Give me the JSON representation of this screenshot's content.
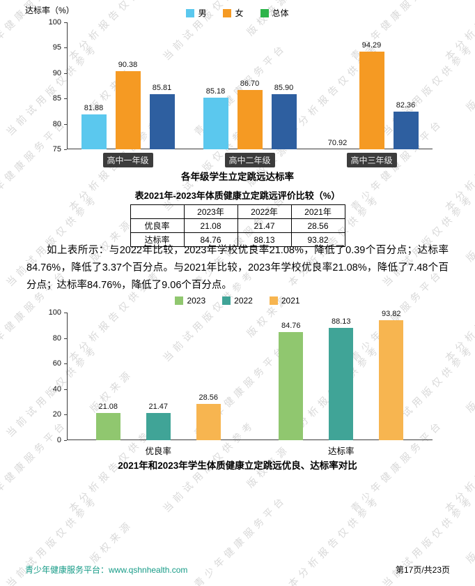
{
  "watermark": {
    "phrases": [
      "青少年健康服务平台",
      "本分析报告仅供参考",
      "当前试用版仅供参考",
      "版权来源"
    ]
  },
  "chart_data": [
    {
      "type": "bar",
      "title": "各年级学生立定跳远达标率",
      "ylabel": "达标率（%）",
      "categories": [
        "高中一年级",
        "高中二年级",
        "高中三年级"
      ],
      "series": [
        {
          "name": "男",
          "color": "#5BC8EE",
          "legend_color": "#5BC8EE",
          "values": [
            81.88,
            85.18,
            70.92
          ]
        },
        {
          "name": "女",
          "color": "#F59A23",
          "legend_color": "#F59A23",
          "values": [
            90.38,
            86.7,
            94.29
          ]
        },
        {
          "name": "总体",
          "color": "#2E5FA0",
          "legend_color": "#2DB44A",
          "values": [
            85.81,
            85.9,
            82.36
          ]
        }
      ],
      "ylim": [
        75,
        100
      ],
      "yticks": [
        75,
        80,
        85,
        90,
        95,
        100
      ],
      "grid": false,
      "legend_position": "top"
    },
    {
      "type": "bar",
      "title": "2021年和2023年学生体质健康立定跳远优良、达标率对比",
      "ylabel": "",
      "categories": [
        "优良率",
        "达标率"
      ],
      "series": [
        {
          "name": "2023",
          "color": "#90C76F",
          "legend_color": "#90C76F",
          "values": [
            21.08,
            84.76
          ]
        },
        {
          "name": "2022",
          "color": "#40A497",
          "legend_color": "#40A497",
          "values": [
            21.47,
            88.13
          ]
        },
        {
          "name": "2021",
          "color": "#F7B550",
          "legend_color": "#F7B550",
          "values": [
            28.56,
            93.82
          ]
        }
      ],
      "ylim": [
        0,
        100
      ],
      "yticks": [
        0,
        20,
        40,
        60,
        80,
        100
      ],
      "grid": false,
      "legend_position": "top"
    }
  ],
  "table": {
    "title": "表2021年-2023年体质健康立定跳远评价比较（%）",
    "headers": [
      "",
      "2023年",
      "2022年",
      "2021年"
    ],
    "rows": [
      {
        "label": "优良率",
        "values": [
          "21.08",
          "21.47",
          "28.56"
        ]
      },
      {
        "label": "达标率",
        "values": [
          "84.76",
          "88.13",
          "93.82"
        ]
      }
    ]
  },
  "paragraph": "如上表所示：与2022年比较，2023年学校优良率21.08%，降低了0.39个百分点；达标率84.76%，降低了3.37个百分点。与2021年比较，2023年学校优良率21.08%，降低了7.48个百分点；达标率84.76%，降低了9.06个百分点。",
  "footer": {
    "left": "青少年健康服务平台：www.qshnhealth.com",
    "right": "第17页/共23页"
  }
}
